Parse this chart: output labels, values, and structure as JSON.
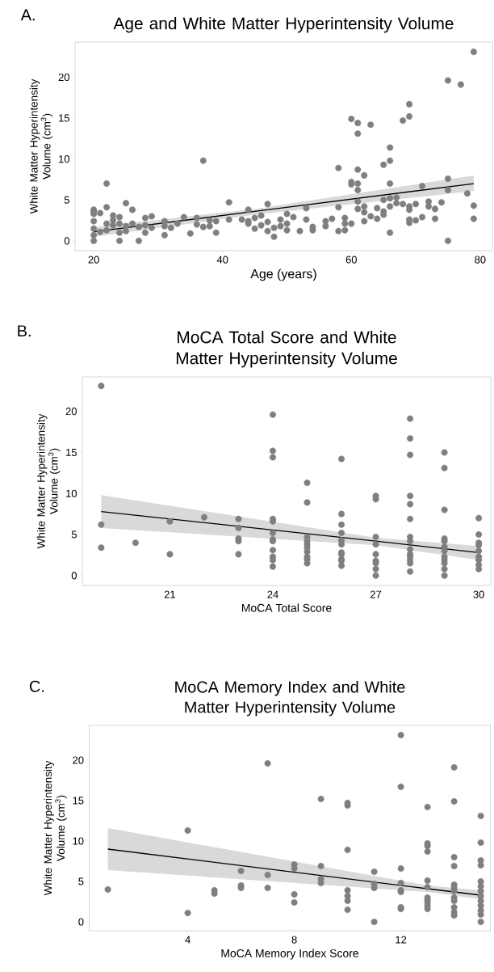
{
  "chart_data": [
    {
      "type": "scatter",
      "title": "Age and White Matter Hyperintensity Volume",
      "xlabel": "Age (years)",
      "ylabel": "White Matter Hyperintensity Volume (cm$^{3}$)",
      "annotations": [
        "A."
      ],
      "xlim": [
        17.1,
        81.9
      ],
      "ylim": [
        -1.2,
        24.3
      ],
      "xticks": [
        20,
        40,
        60,
        80
      ],
      "yticks": [
        0,
        5,
        10,
        15,
        20
      ],
      "series": [
        {
          "marker": "circle",
          "color": "#7f7f7f",
          "x": [
            20,
            20,
            20,
            20,
            20,
            20,
            20,
            21,
            21,
            22,
            22,
            22,
            22,
            23,
            23,
            23,
            24,
            24,
            24,
            24,
            25,
            25,
            25,
            26,
            26,
            27,
            27,
            28,
            28,
            28,
            29,
            29,
            31,
            31,
            31,
            32,
            33,
            34,
            35,
            36,
            36,
            37,
            37,
            38,
            38,
            39,
            39,
            41,
            41,
            43,
            44,
            44,
            44,
            45,
            45,
            46,
            46,
            47,
            47,
            47,
            48,
            48,
            49,
            49,
            50,
            50,
            50,
            51,
            52,
            53,
            53,
            54,
            54,
            56,
            56,
            57,
            58,
            58,
            58,
            59,
            59,
            59,
            60,
            60,
            60,
            60,
            61,
            61,
            61,
            61,
            61,
            61,
            61,
            62,
            62,
            62,
            62,
            63,
            63,
            64,
            64,
            65,
            65,
            65,
            65,
            66,
            66,
            66,
            66,
            66,
            66,
            67,
            67,
            68,
            68,
            69,
            69,
            69,
            69,
            69,
            69,
            70,
            70,
            71,
            71,
            72,
            72,
            73,
            73,
            74,
            75,
            75,
            75,
            75,
            77,
            78,
            79,
            79,
            79
          ],
          "values": [
            3.6,
            3.8,
            3.3,
            2.4,
            1.5,
            0.7,
            0.0,
            3.4,
            1.1,
            7.0,
            4.1,
            2.1,
            1.3,
            3.1,
            2.5,
            1.9,
            2.9,
            2.1,
            1.0,
            0.0,
            4.6,
            1.8,
            1.2,
            3.8,
            2.1,
            1.7,
            0.0,
            2.8,
            1.9,
            1.0,
            3.0,
            1.6,
            2.4,
            1.8,
            0.7,
            1.6,
            2.1,
            2.9,
            0.9,
            2.8,
            2.0,
            9.8,
            1.7,
            1.8,
            2.5,
            2.4,
            1.0,
            4.7,
            2.6,
            2.6,
            3.8,
            2.4,
            2.1,
            2.8,
            1.5,
            3.1,
            1.9,
            4.5,
            2.3,
            1.2,
            1.6,
            0.5,
            2.6,
            1.8,
            3.3,
            2.1,
            1.3,
            2.9,
            1.2,
            4.0,
            2.6,
            1.7,
            1.3,
            2.4,
            1.8,
            2.7,
            8.9,
            4.1,
            1.2,
            2.8,
            2.1,
            1.3,
            14.9,
            7.2,
            6.9,
            2.1,
            14.4,
            13.1,
            8.7,
            7.0,
            6.2,
            4.8,
            3.9,
            8.0,
            4.2,
            3.5,
            2.4,
            14.2,
            3.0,
            4.0,
            2.7,
            9.3,
            5.0,
            3.6,
            3.2,
            11.4,
            9.8,
            7.0,
            5.2,
            4.2,
            1.0,
            5.3,
            4.6,
            14.7,
            4.5,
            16.7,
            15.2,
            4.2,
            3.8,
            2.6,
            2.2,
            4.5,
            2.5,
            6.7,
            2.9,
            4.8,
            4.2,
            3.9,
            2.7,
            4.7,
            19.6,
            7.6,
            6.2,
            0.0,
            19.1,
            5.8,
            23.1,
            4.3,
            2.7
          ]
        },
        {
          "type": "line",
          "marker": "none",
          "color": "#000000",
          "x": [
            20,
            45,
            79
          ],
          "values": [
            1.1,
            3.6,
            7.0
          ],
          "lower": [
            0.5,
            3.2,
            6.1
          ],
          "upper": [
            1.7,
            3.9,
            8.0
          ]
        }
      ]
    },
    {
      "type": "scatter",
      "title": "MoCA Total Score and White Matter Hyperintensity Volume",
      "xlabel": "MoCA Total Score",
      "ylabel": "White Matter Hyperintensity Volume (cm$^{3}$)",
      "annotations": [
        "B."
      ],
      "xlim": [
        18.45,
        30.35
      ],
      "ylim": [
        -1.2,
        24.2
      ],
      "xticks": [
        21,
        24,
        27,
        30
      ],
      "yticks": [
        0,
        5,
        10,
        15,
        20
      ],
      "series": [
        {
          "marker": "circle",
          "color": "#7f7f7f",
          "x": [
            19,
            19,
            19,
            20,
            21,
            21,
            22,
            23,
            23,
            23,
            23,
            23,
            24,
            24,
            24,
            24,
            24,
            24,
            24,
            24,
            24,
            24,
            24,
            24,
            25,
            25,
            25,
            25,
            25,
            25,
            25,
            25,
            25,
            25,
            26,
            26,
            26,
            26,
            26,
            26,
            26,
            26,
            26,
            26,
            26,
            27,
            27,
            27,
            27,
            27,
            27,
            27,
            27,
            27,
            28,
            28,
            28,
            28,
            28,
            28,
            28,
            28,
            28,
            28,
            28,
            28,
            28,
            28,
            29,
            29,
            29,
            29,
            29,
            29,
            29,
            29,
            29,
            29,
            29,
            29,
            30,
            30,
            30,
            30,
            30,
            30,
            30,
            30,
            30
          ],
          "values": [
            23.1,
            6.2,
            3.4,
            4.0,
            6.6,
            2.6,
            7.1,
            6.9,
            5.8,
            4.5,
            4.2,
            2.6,
            19.6,
            15.2,
            14.4,
            6.9,
            6.6,
            5.2,
            4.4,
            4.2,
            3.1,
            2.3,
            1.9,
            1.1,
            11.3,
            8.9,
            4.7,
            4.2,
            3.8,
            3.4,
            2.9,
            2.3,
            2.0,
            1.5,
            14.2,
            7.5,
            6.2,
            5.2,
            4.3,
            3.8,
            2.8,
            2.6,
            2.0,
            1.8,
            1.2,
            9.7,
            9.3,
            4.7,
            3.8,
            2.6,
            1.8,
            1.5,
            0.8,
            0.0,
            19.1,
            16.7,
            14.7,
            9.7,
            8.7,
            6.9,
            4.7,
            4.2,
            3.2,
            2.6,
            2.3,
            1.9,
            1.5,
            0.5,
            15.0,
            13.1,
            8.0,
            4.5,
            4.2,
            3.5,
            3.0,
            2.3,
            1.9,
            1.5,
            0.8,
            0.0,
            7.0,
            5.0,
            4.0,
            3.7,
            3.0,
            2.3,
            1.9,
            1.3,
            0.8
          ]
        },
        {
          "type": "line",
          "marker": "none",
          "color": "#000000",
          "x": [
            19,
            27,
            30
          ],
          "values": [
            7.8,
            4.2,
            2.8
          ],
          "lower": [
            5.8,
            3.7,
            1.9
          ],
          "upper": [
            9.8,
            4.6,
            3.6
          ]
        }
      ]
    },
    {
      "type": "scatter",
      "title": "MoCA Memory Index and White Matter Hyperintensity Volume",
      "xlabel": "MoCA Memory Index Score",
      "ylabel": "White Matter Hyperintensity Volume (cm$^{3}$)",
      "annotations": [
        "C."
      ],
      "xlim": [
        0.3,
        15.36
      ],
      "ylim": [
        -1.1,
        24.3
      ],
      "xticks": [
        4,
        8,
        12
      ],
      "yticks": [
        0,
        5,
        10,
        15,
        20
      ],
      "series": [
        {
          "marker": "circle",
          "color": "#7f7f7f",
          "x": [
            1,
            4,
            4,
            5,
            5,
            6,
            6,
            6,
            7,
            7,
            7,
            8,
            8,
            8,
            8,
            9,
            9,
            9,
            9,
            10,
            10,
            10,
            10,
            10,
            10,
            10,
            11,
            11,
            11,
            11,
            12,
            12,
            12,
            12,
            12,
            12,
            12,
            12,
            13,
            13,
            13,
            13,
            13,
            13,
            13,
            13,
            13,
            13,
            13,
            14,
            14,
            14,
            14,
            14,
            14,
            14,
            14,
            14,
            14,
            14,
            14,
            15,
            15,
            15,
            15,
            15,
            15,
            15,
            15,
            15,
            15,
            15,
            15,
            15
          ],
          "values": [
            4.0,
            11.3,
            1.1,
            3.9,
            3.5,
            6.3,
            4.5,
            4.2,
            19.6,
            5.8,
            4.2,
            7.1,
            6.6,
            3.4,
            2.4,
            15.2,
            6.9,
            5.3,
            4.8,
            14.7,
            14.4,
            8.9,
            3.9,
            3.2,
            2.6,
            1.5,
            6.2,
            4.7,
            4.2,
            0.0,
            23.1,
            16.7,
            6.6,
            4.8,
            3.9,
            3.7,
            1.8,
            1.6,
            14.2,
            9.7,
            9.4,
            8.7,
            5.1,
            4.3,
            3.0,
            2.7,
            2.4,
            2.0,
            1.6,
            19.1,
            14.9,
            8.0,
            6.9,
            4.6,
            4.2,
            3.8,
            3.0,
            2.6,
            1.8,
            1.2,
            0.8,
            13.1,
            9.8,
            7.6,
            7.0,
            5.0,
            4.4,
            3.8,
            3.2,
            2.6,
            2.0,
            1.4,
            0.9,
            0.0
          ]
        },
        {
          "type": "line",
          "marker": "none",
          "color": "#000000",
          "x": [
            1,
            13,
            15
          ],
          "values": [
            9.0,
            4.1,
            3.3
          ],
          "lower": [
            6.4,
            3.7,
            2.8
          ],
          "upper": [
            11.6,
            4.5,
            3.9
          ]
        }
      ]
    }
  ]
}
